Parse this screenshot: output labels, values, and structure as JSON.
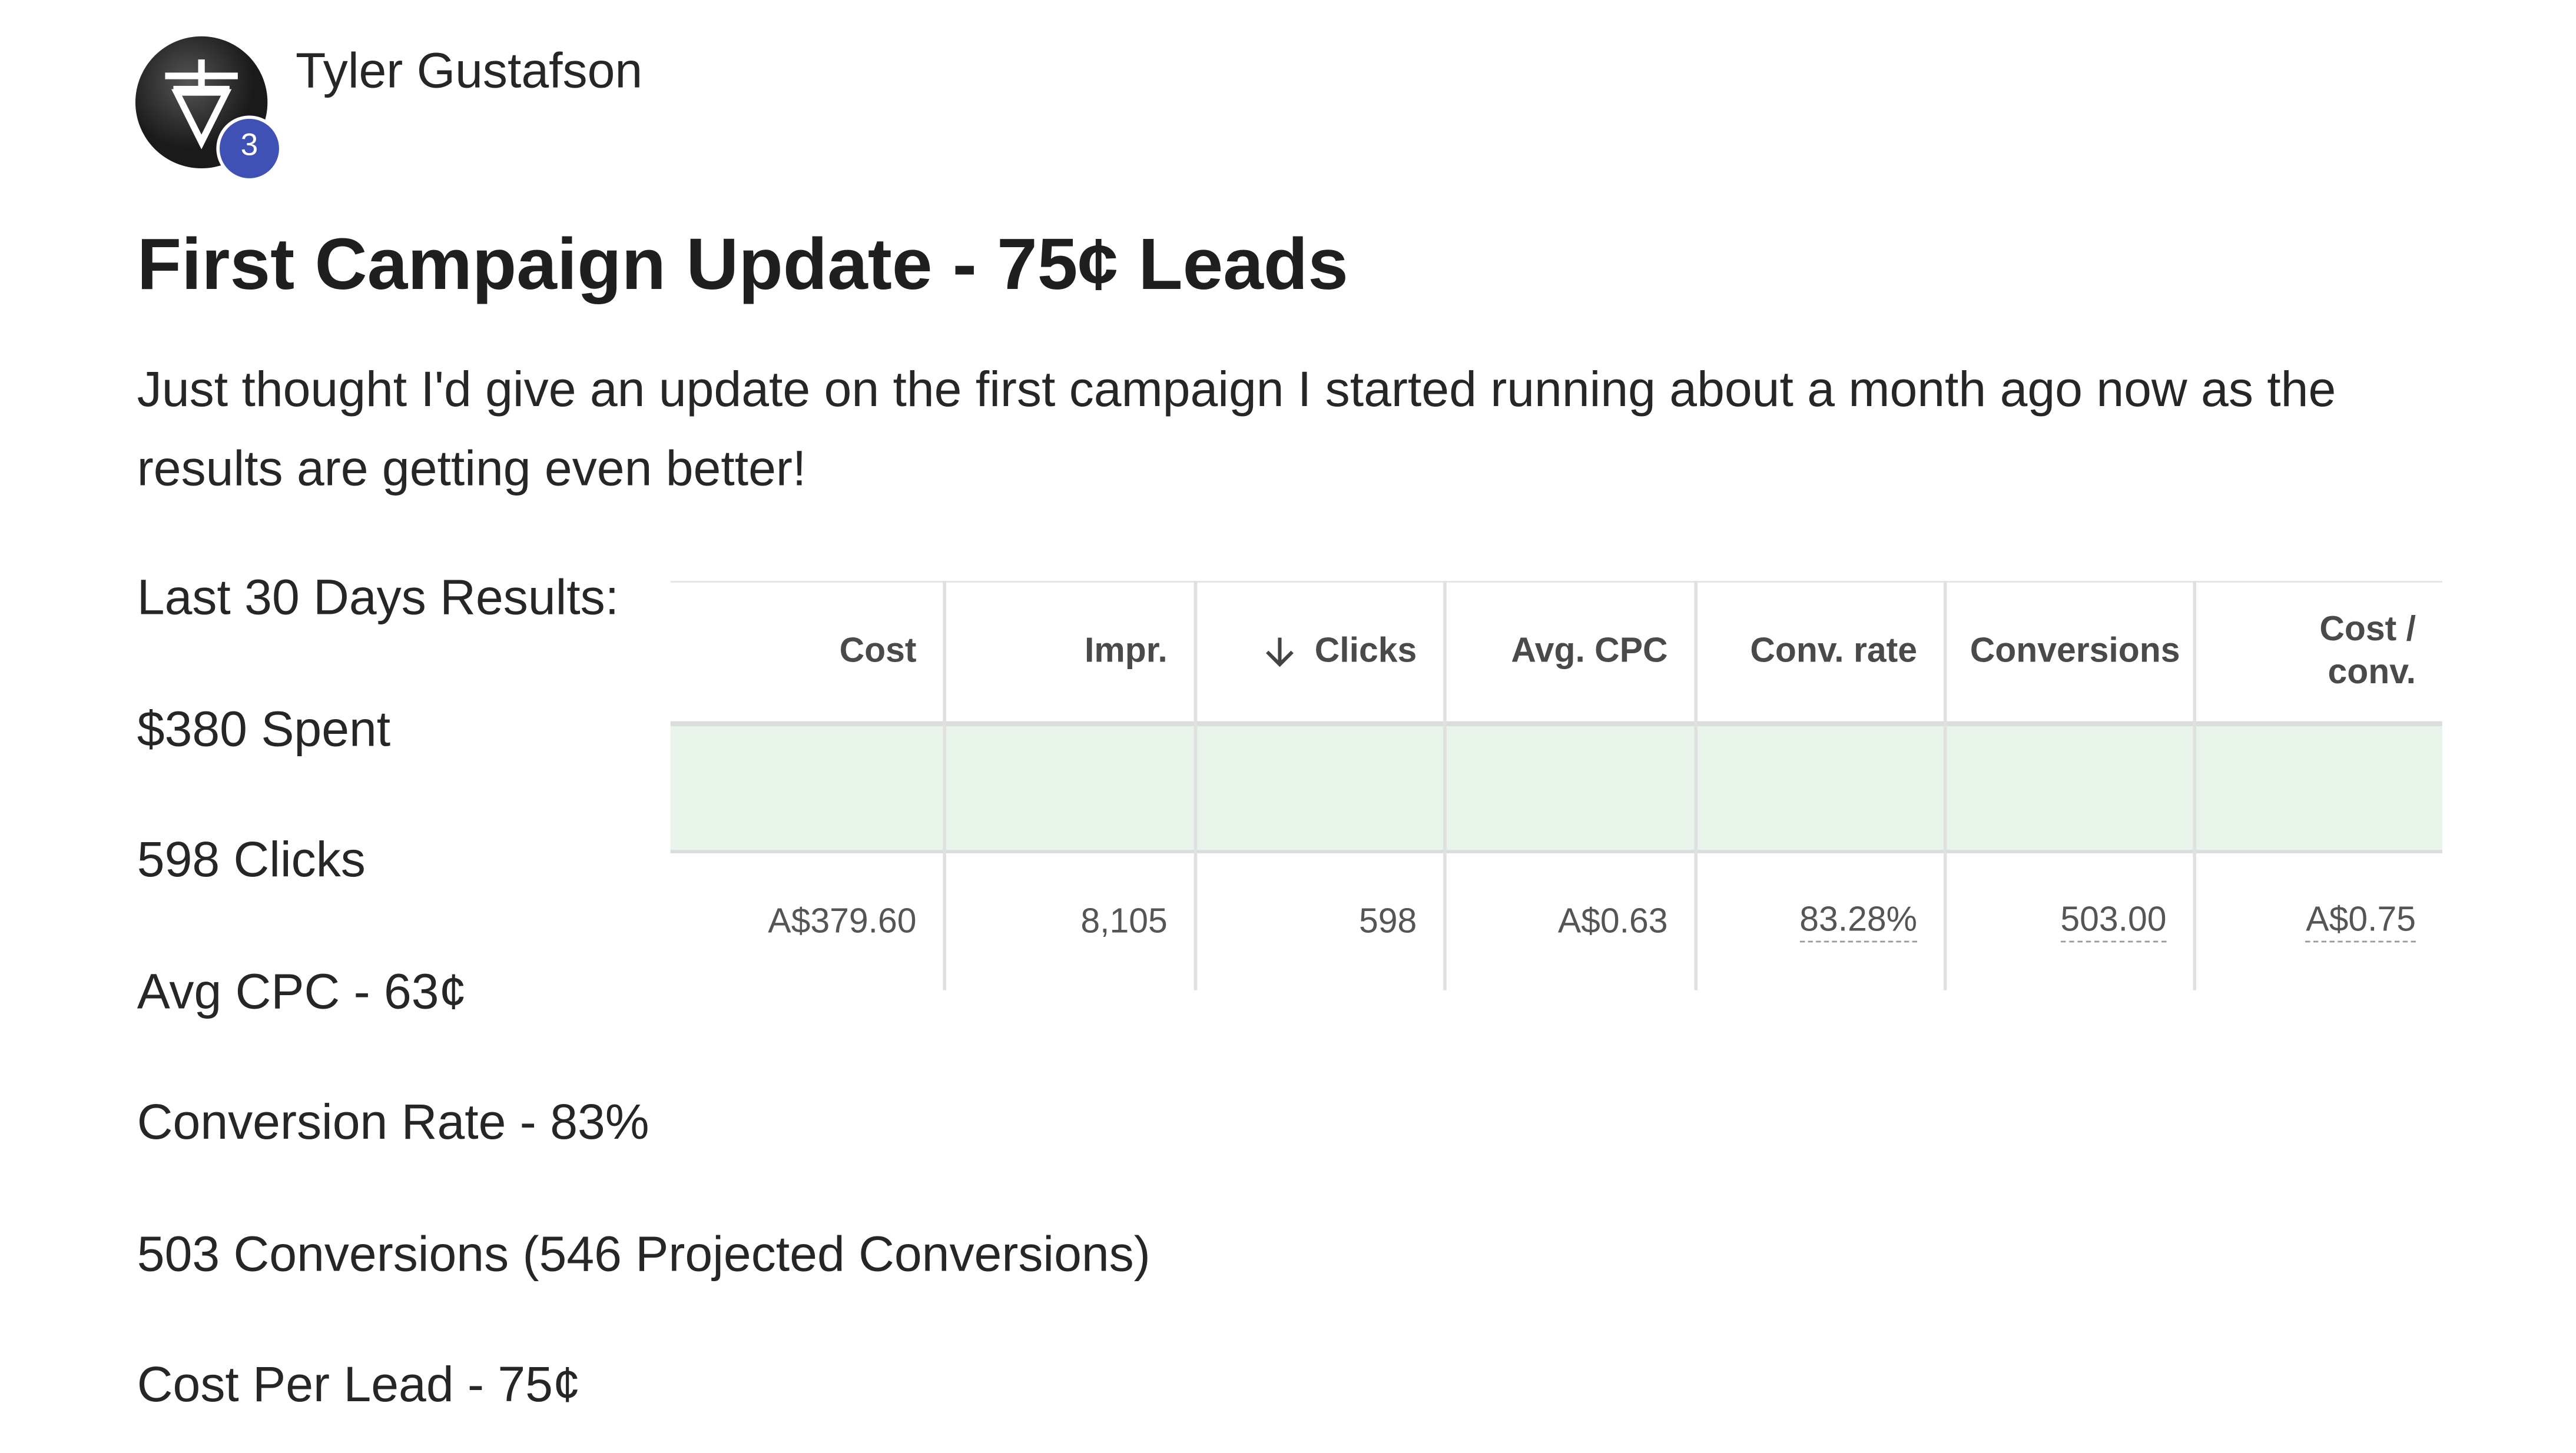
{
  "author": {
    "name": "Tyler Gustafson",
    "badge": "3"
  },
  "post": {
    "title": "First Campaign Update - 75¢ Leads",
    "body": "Just thought I'd give an update on the first campaign I started running about a month ago now as the results are getting even better!",
    "lines": [
      "Last 30 Days Results:",
      "$380 Spent",
      "598 Clicks",
      "Avg CPC - 63¢",
      "Conversion Rate - 83%",
      "503 Conversions (546 Projected Conversions)",
      "Cost Per Lead - 75¢"
    ]
  },
  "table": {
    "headers": [
      "Cost",
      "Impr.",
      "Clicks",
      "Avg. CPC",
      "Conv. rate",
      "Conversions",
      "Cost / conv."
    ],
    "rows": [
      [
        "A$379.60",
        "8,105",
        "598",
        "A$0.63",
        "83.28%",
        "503.00",
        "A$0.75"
      ]
    ]
  }
}
